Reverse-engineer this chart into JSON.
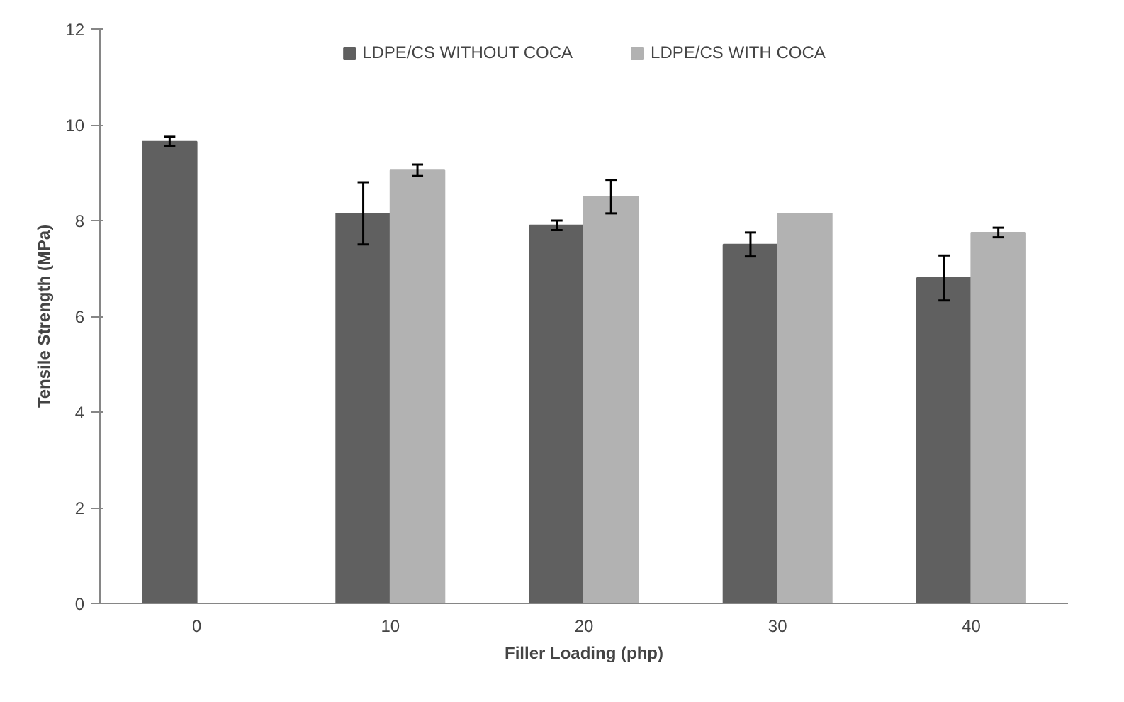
{
  "chart_data": {
    "type": "bar",
    "xlabel": "Filler Loading (php)",
    "ylabel": "Tensile Strength (MPa)",
    "categories": [
      "0",
      "10",
      "20",
      "30",
      "40"
    ],
    "series": [
      {
        "name": "LDPE/CS WITHOUT COCA",
        "color": "#606060",
        "values": [
          9.65,
          8.15,
          7.9,
          7.5,
          6.8
        ],
        "errors": [
          0.1,
          0.65,
          0.1,
          0.25,
          0.47
        ]
      },
      {
        "name": "LDPE/CS WITH COCA",
        "color": "#b2b2b2",
        "values": [
          null,
          9.05,
          8.5,
          8.15,
          7.75
        ],
        "errors": [
          null,
          0.12,
          0.35,
          null,
          0.1
        ]
      }
    ],
    "ylim": [
      0,
      12
    ],
    "yticks": [
      0,
      2,
      4,
      6,
      8,
      10,
      12
    ],
    "grid": false,
    "legend": "top"
  }
}
